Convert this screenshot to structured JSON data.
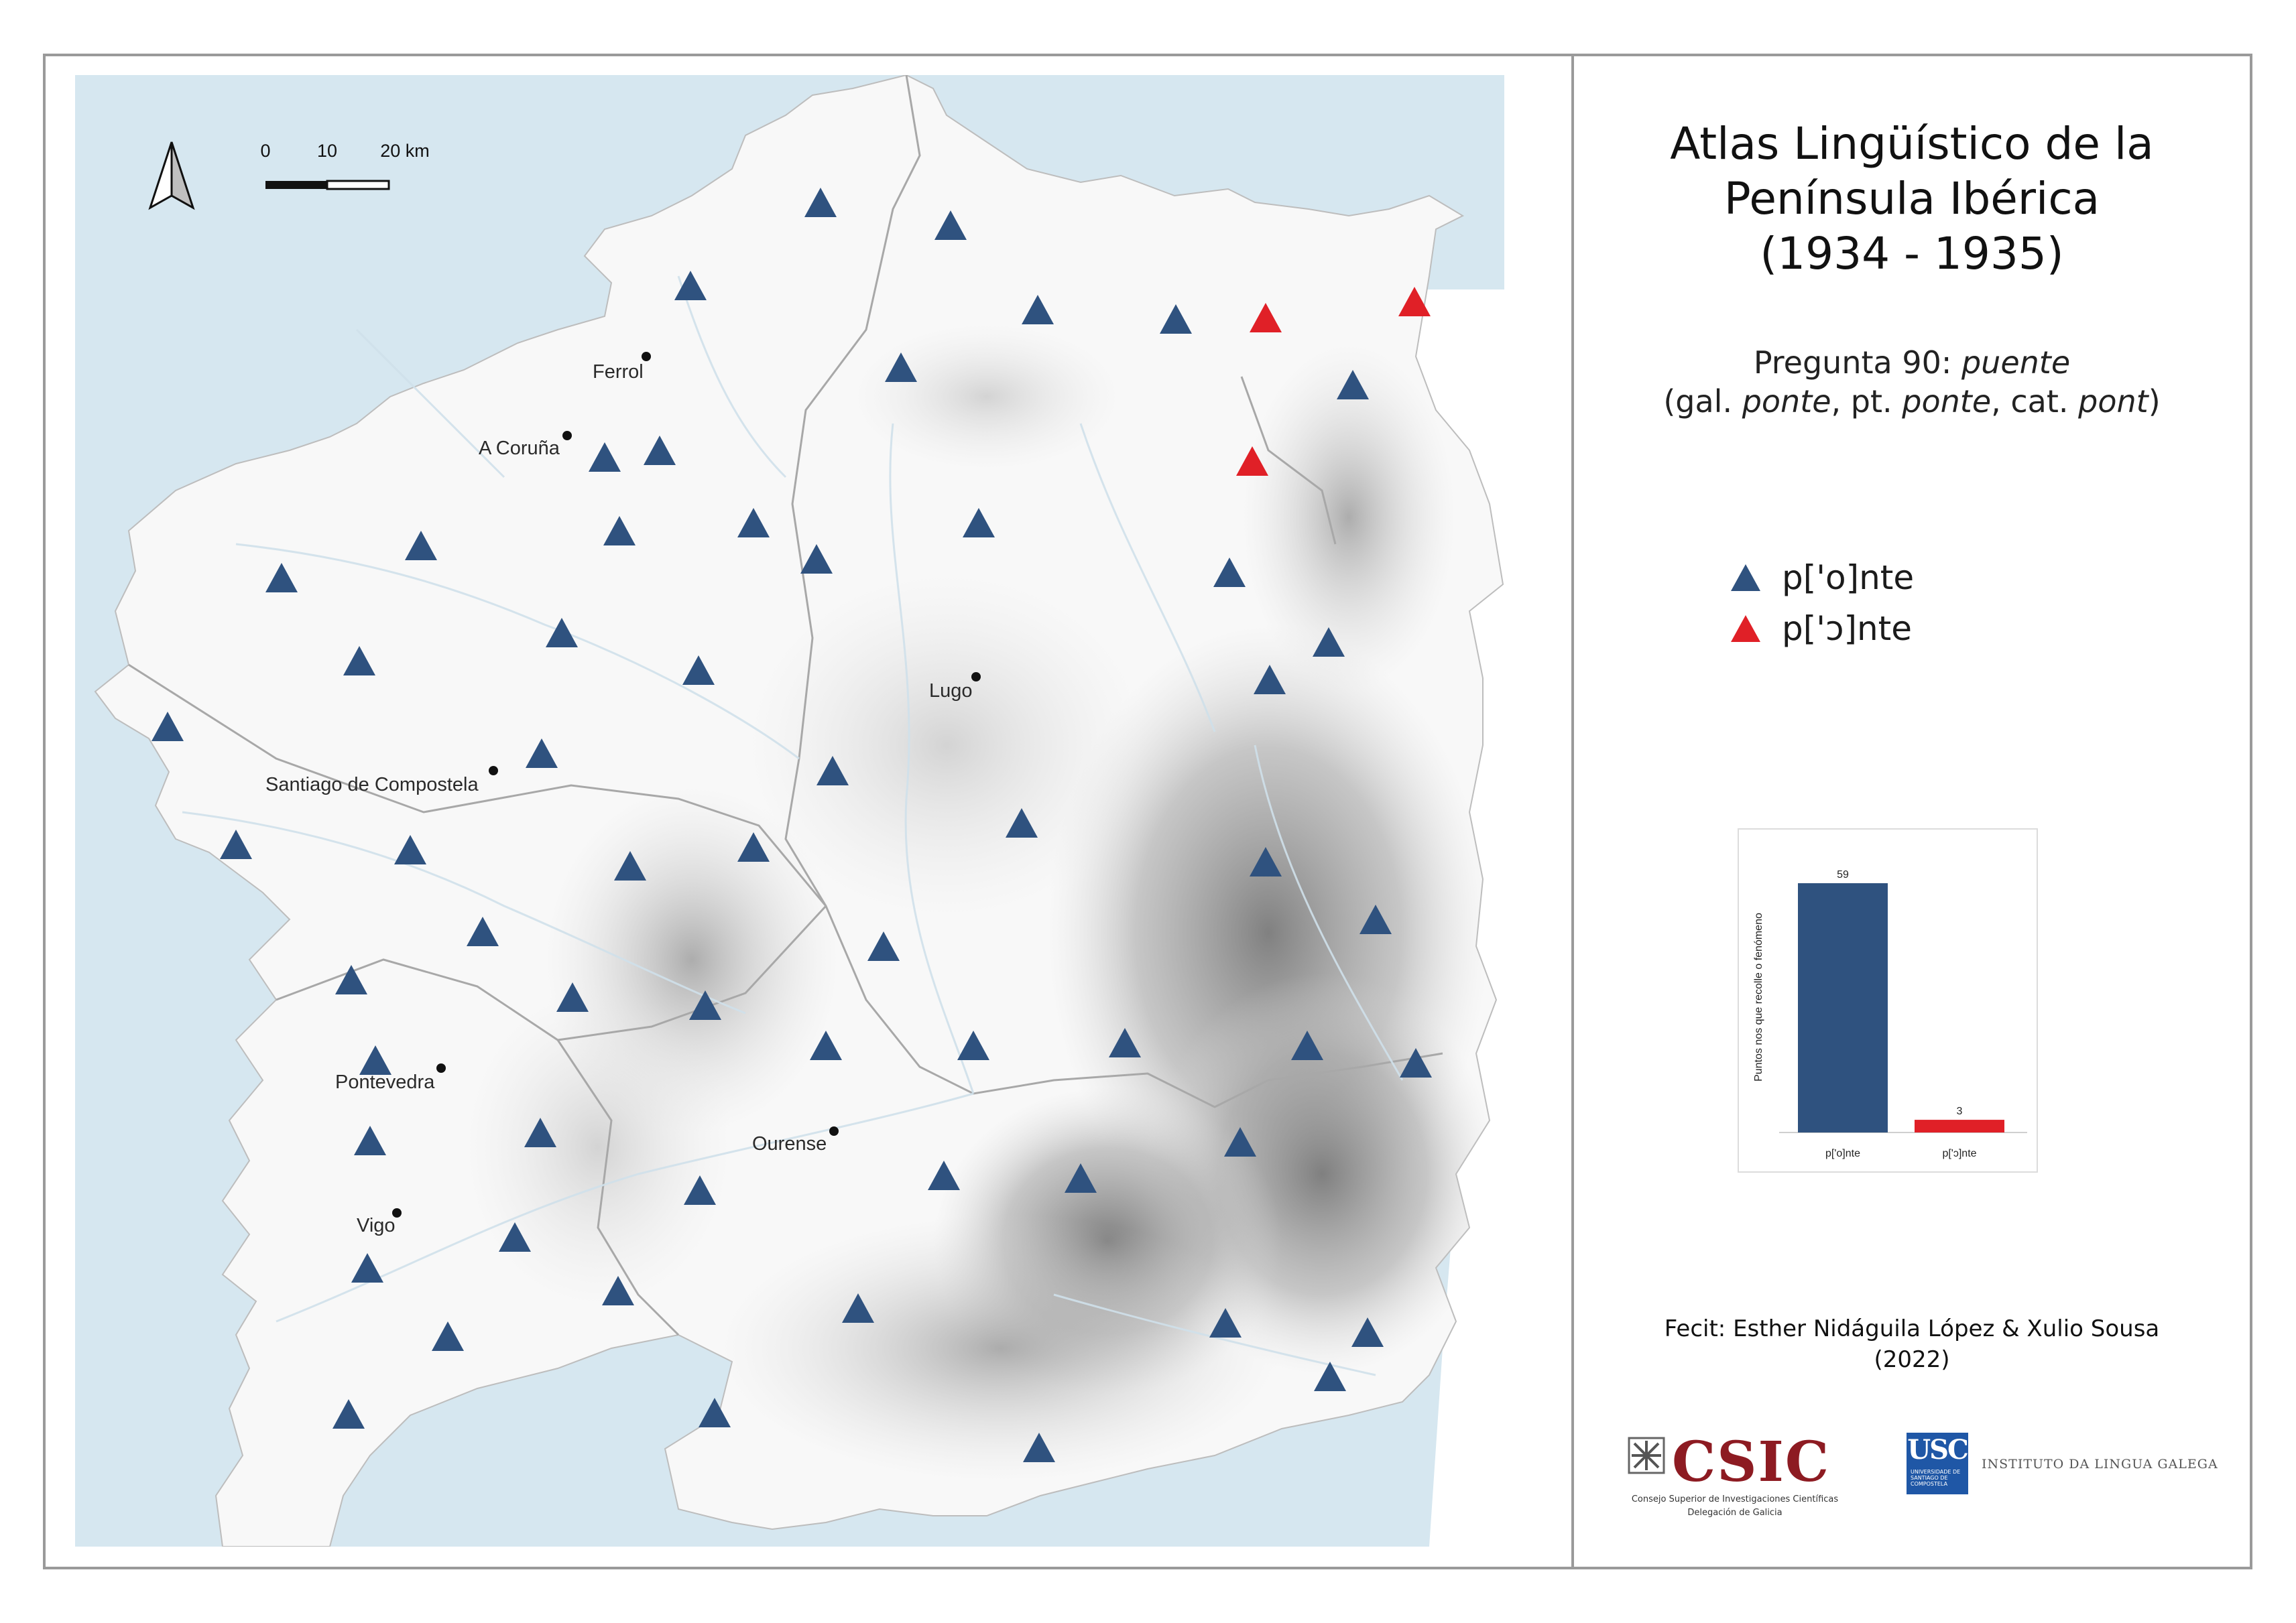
{
  "title": {
    "line1": "Atlas Lingüístico de la",
    "line2": "Península Ibérica",
    "line3": "(1934 - 1935)"
  },
  "question": {
    "prefix": "Pregunta 90: ",
    "word": "puente",
    "gal_label": "(gal. ",
    "gal_word": "ponte",
    "pt_label": ", pt. ",
    "pt_word": "ponte",
    "cat_label": ", cat. ",
    "cat_word": "pont",
    "close": ")"
  },
  "legend": [
    {
      "label": "p['o]nte",
      "color": "#2f527f",
      "icon": "triangle-blue-icon"
    },
    {
      "label": "p['ɔ]nte",
      "color": "#e02027",
      "icon": "triangle-red-icon"
    }
  ],
  "scale": {
    "ticks": [
      "0",
      "10",
      "20 km"
    ]
  },
  "north_icon": "north-arrow-icon",
  "cities": [
    {
      "name": "Ferrol"
    },
    {
      "name": "A Coruña"
    },
    {
      "name": "Lugo"
    },
    {
      "name": "Santiago de Compostela"
    },
    {
      "name": "Pontevedra"
    },
    {
      "name": "Ourense"
    },
    {
      "name": "Vigo"
    }
  ],
  "chart_data": {
    "type": "bar",
    "categories": [
      "p['o]nte",
      "p['ɔ]nte"
    ],
    "values": [
      59,
      3
    ],
    "colors": [
      "#2f527f",
      "#e02027"
    ],
    "ylabel": "Puntos nos que recolle o fenómeno",
    "data_labels": [
      "59",
      "3"
    ]
  },
  "credits": {
    "line1": "Fecit: Esther Nidáguila López & Xulio Sousa",
    "line2": "(2022)"
  },
  "logos": {
    "csic": "CSIC",
    "csic_sub1": "Consejo Superior de Investigaciones Científicas",
    "csic_sub2": "Delegación de Galicia",
    "usc": "USC",
    "usc_sub": "UNIVERSIDADE DE SANTIAGO DE COMPOSTELA",
    "ilg": "INSTITUTO DA LINGUA GALEGA"
  },
  "colors": {
    "sea": "#d6e7f0",
    "land": "#f7f7f7",
    "blue_marker": "#2f527f",
    "red_marker": "#e02027"
  }
}
